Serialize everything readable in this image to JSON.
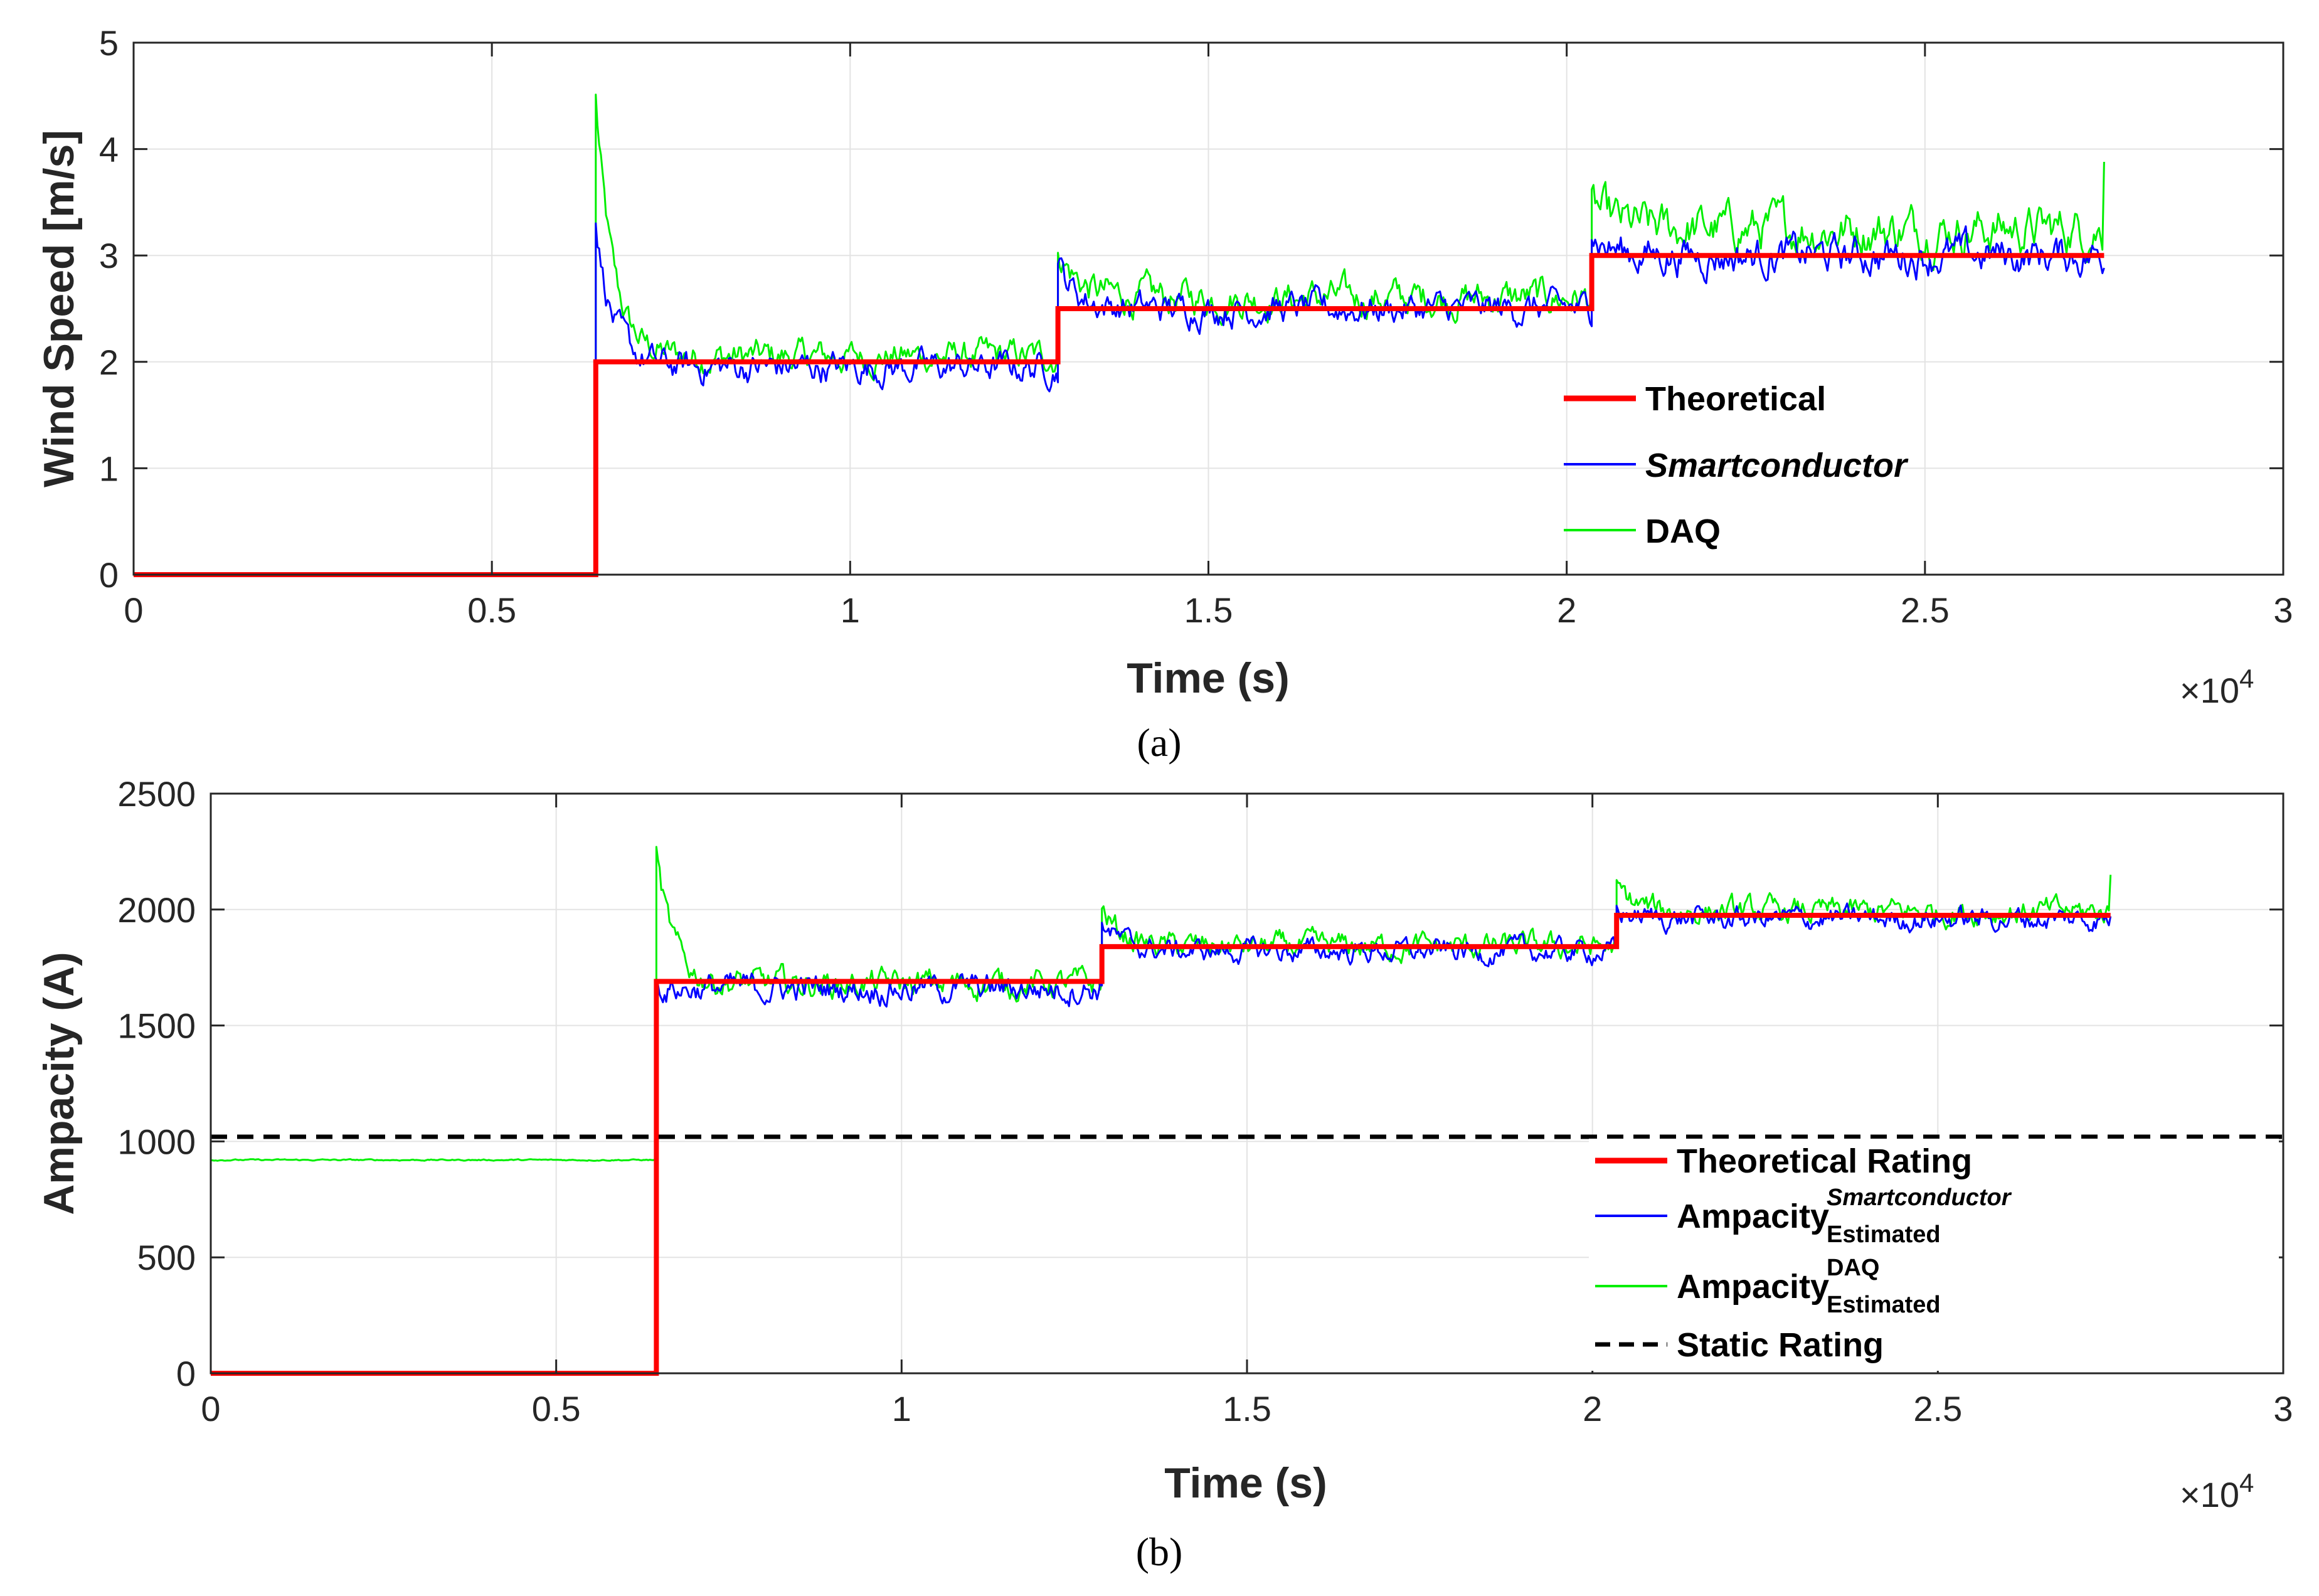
{
  "chart_data": [
    {
      "type": "line",
      "panel": "a",
      "caption": "(a)",
      "xlabel": "Time (s)",
      "ylabel": "Wind Speed [m/s]",
      "x_exponent_label": "×10",
      "x_exponent_power": "4",
      "xlim": [
        0,
        3
      ],
      "ylim": [
        0,
        5
      ],
      "xticks": [
        "0",
        "0.5",
        "1",
        "1.5",
        "2",
        "2.5",
        "3"
      ],
      "yticks": [
        "0",
        "1",
        "2",
        "3",
        "4",
        "5"
      ],
      "grid": true,
      "legend_position": "inside-right",
      "series": [
        {
          "name": "Theoretical",
          "kind": "step",
          "color": "#ff0000",
          "segments": [
            {
              "x_from": 0.0,
              "x_to": 0.645,
              "value": 0
            },
            {
              "x_from": 0.645,
              "x_to": 1.29,
              "value": 2.0
            },
            {
              "x_from": 1.29,
              "x_to": 2.035,
              "value": 2.5
            },
            {
              "x_from": 2.035,
              "x_to": 2.75,
              "value": 3.0
            }
          ]
        },
        {
          "name": "Smartconductor",
          "kind": "noisy",
          "color": "#0000ff",
          "segments": [
            {
              "x_from": 0.0,
              "x_to": 0.645,
              "value": 0,
              "noise": 0
            },
            {
              "x_from": 0.645,
              "x_to": 1.29,
              "value": 1.95,
              "noise": 0.15,
              "spike": 3.3
            },
            {
              "x_from": 1.29,
              "x_to": 2.035,
              "value": 2.5,
              "noise": 0.15,
              "spike": 2.9
            },
            {
              "x_from": 2.035,
              "x_to": 2.75,
              "value": 3.0,
              "noise": 0.18,
              "spike": 3.2
            }
          ]
        },
        {
          "name": "DAQ",
          "kind": "noisy",
          "color": "#00ee00",
          "segments": [
            {
              "x_from": 0.0,
              "x_to": 0.645,
              "value": 0,
              "noise": 0
            },
            {
              "x_from": 0.645,
              "x_to": 1.29,
              "value": 2.05,
              "noise": 0.15,
              "spike": 4.48
            },
            {
              "x_from": 1.29,
              "x_to": 2.035,
              "value": 2.6,
              "noise": 0.17,
              "spike": 3.1
            },
            {
              "x_from": 2.035,
              "x_to": 2.75,
              "value": 3.25,
              "noise": 0.22,
              "spike": 3.5,
              "end": 3.88
            }
          ]
        }
      ]
    },
    {
      "type": "line",
      "panel": "b",
      "caption": "(b)",
      "xlabel": "Time (s)",
      "ylabel": "Ampacity (A)",
      "x_exponent_label": "×10",
      "x_exponent_power": "4",
      "xlim": [
        0,
        3
      ],
      "ylim": [
        0,
        2500
      ],
      "xticks": [
        "0",
        "0.5",
        "1",
        "1.5",
        "2",
        "2.5",
        "3"
      ],
      "yticks": [
        "0",
        "500",
        "1000",
        "1500",
        "2000",
        "2500"
      ],
      "grid": true,
      "legend_position": "inside-right",
      "series": [
        {
          "name": "Theoretical Rating",
          "kind": "step",
          "color": "#ff0000",
          "segments": [
            {
              "x_from": 0.0,
              "x_to": 0.645,
              "value": 0
            },
            {
              "x_from": 0.645,
              "x_to": 1.29,
              "value": 1690
            },
            {
              "x_from": 1.29,
              "x_to": 2.035,
              "value": 1840
            },
            {
              "x_from": 2.035,
              "x_to": 2.75,
              "value": 1975
            }
          ]
        },
        {
          "name": "Ampacity",
          "sup": "Smartconductor",
          "sub": "Estimated",
          "kind": "noisy",
          "color": "#0000ff",
          "segments": [
            {
              "x_from": 0.645,
              "x_to": 1.29,
              "value": 1660,
              "noise": 60,
              "spike": 1950
            },
            {
              "x_from": 1.29,
              "x_to": 2.035,
              "value": 1820,
              "noise": 50,
              "spike": 1960
            },
            {
              "x_from": 2.035,
              "x_to": 2.75,
              "value": 1960,
              "noise": 50,
              "spike": 2000
            }
          ]
        },
        {
          "name": "Ampacity",
          "sup": "DAQ",
          "sub": "Estimated",
          "kind": "noisy",
          "color": "#00ee00",
          "segments": [
            {
              "x_from": 0.0,
              "x_to": 0.645,
              "value": 920,
              "noise": 3
            },
            {
              "x_from": 0.645,
              "x_to": 1.29,
              "value": 1680,
              "noise": 60,
              "spike": 2240
            },
            {
              "x_from": 1.29,
              "x_to": 2.035,
              "value": 1840,
              "noise": 55,
              "spike": 2010
            },
            {
              "x_from": 2.035,
              "x_to": 2.75,
              "value": 1990,
              "noise": 55,
              "spike": 2100,
              "end": 2150
            }
          ]
        },
        {
          "name": "Static Rating",
          "kind": "constant",
          "color": "#000000",
          "dashed": true,
          "value": 1020,
          "x_from": 0.0,
          "x_to": 3.0
        }
      ]
    }
  ]
}
